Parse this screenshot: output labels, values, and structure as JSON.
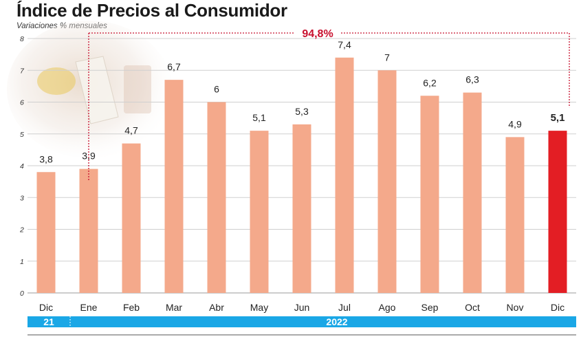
{
  "header": {
    "title": "Índice de Precios al Consumidor",
    "subtitle": "Variaciones % mensuales"
  },
  "colors": {
    "bar": "#f4a98b",
    "highlight": "#e31e24",
    "accumulated": "#c8102e",
    "year_band": "#1aa7e6",
    "grid": "#cfcfcf"
  },
  "chart_data": {
    "type": "bar",
    "title": "Índice de Precios al Consumidor",
    "subtitle": "Variaciones % mensuales",
    "xlabel": "",
    "ylabel": "",
    "ylim": [
      0,
      8
    ],
    "yticks": [
      "0",
      "1",
      "2",
      "3",
      "4",
      "5",
      "6",
      "7",
      "8"
    ],
    "grid": true,
    "categories": [
      "Dic",
      "Ene",
      "Feb",
      "Mar",
      "Abr",
      "May",
      "Jun",
      "Jul",
      "Ago",
      "Sep",
      "Oct",
      "Nov",
      "Dic"
    ],
    "values": [
      3.8,
      3.9,
      4.7,
      6.7,
      6.0,
      5.1,
      5.3,
      7.4,
      7.0,
      6.2,
      6.3,
      4.9,
      5.1
    ],
    "value_labels": [
      "3,8",
      "3,9",
      "4,7",
      "6,7",
      "6",
      "5,1",
      "5,3",
      "7,4",
      "7",
      "6,2",
      "6,3",
      "4,9",
      "5,1"
    ],
    "highlight_index": 12,
    "years": [
      {
        "label": "21",
        "from": 0,
        "to": 0
      },
      {
        "label": "2022",
        "from": 1,
        "to": 12
      }
    ],
    "annotations": [
      {
        "text": "94,8%",
        "from": "Ene",
        "to": "Dic"
      }
    ]
  }
}
